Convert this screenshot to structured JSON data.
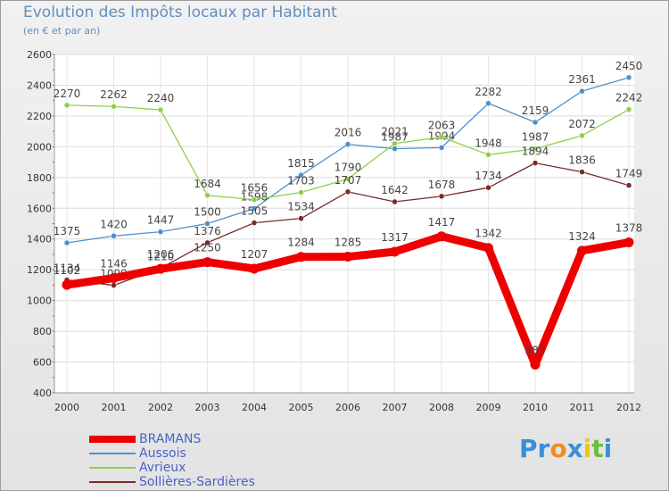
{
  "chart_data": {
    "type": "line",
    "title": "Evolution des Impôts locaux par Habitant",
    "subtitle": "(en € et par an)",
    "xlabel": "",
    "ylabel": "",
    "ylim": [
      400,
      2600
    ],
    "yticks": [
      400,
      600,
      800,
      1000,
      1200,
      1400,
      1600,
      1800,
      2000,
      2200,
      2400,
      2600
    ],
    "grid": true,
    "legend_position": "bottom-left",
    "categories": [
      "2000",
      "2001",
      "2002",
      "2003",
      "2004",
      "2005",
      "2006",
      "2007",
      "2008",
      "2009",
      "2010",
      "2011",
      "2012"
    ],
    "series": [
      {
        "name": "BRAMANS",
        "color": "#ee0000",
        "values": [
          1102,
          1146,
          1206,
          1250,
          1207,
          1284,
          1285,
          1317,
          1417,
          1342,
          583,
          1324,
          1378
        ]
      },
      {
        "name": "Aussois",
        "color": "#4f8fce",
        "values": [
          1375,
          1420,
          1447,
          1500,
          1598,
          1815,
          2016,
          1987,
          1994,
          2282,
          2159,
          2361,
          2450
        ]
      },
      {
        "name": "Avrieux",
        "color": "#8cd04a",
        "values": [
          2270,
          2262,
          2240,
          1684,
          1656,
          1703,
          1790,
          2021,
          2063,
          1948,
          1987,
          2072,
          2242
        ]
      },
      {
        "name": "Sollières-Sardières",
        "color": "#7a2a2a",
        "values": [
          1134,
          1099,
          1210,
          1376,
          1505,
          1534,
          1707,
          1642,
          1678,
          1734,
          1894,
          1836,
          1749
        ]
      }
    ]
  },
  "brand": {
    "letters": [
      "P",
      "r",
      "o",
      "x",
      "i",
      "t",
      "i"
    ],
    "colors": [
      "#3a8fd6",
      "#3a8fd6",
      "#f28c1e",
      "#3a8fd6",
      "#f0c419",
      "#6cbf3c",
      "#3a8fd6"
    ]
  }
}
